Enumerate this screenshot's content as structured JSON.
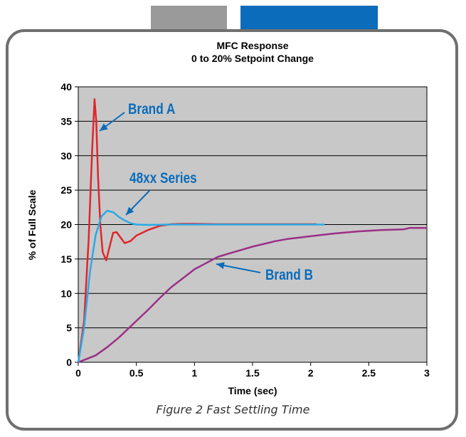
{
  "header_tabs": [
    {
      "color": "#9a9a9a"
    },
    {
      "color": "#0b6cbb"
    }
  ],
  "caption": "Figure 2 Fast Settling Time",
  "chart_data": {
    "type": "line",
    "title": "MFC Response",
    "subtitle": "0 to 20% Setpoint Change",
    "xlabel": "Time (sec)",
    "ylabel": "% of Full Scale",
    "xlim": [
      0,
      3
    ],
    "ylim": [
      0,
      40
    ],
    "x_ticks": [
      "0",
      "0.5",
      "1",
      "1.5",
      "2",
      "2.5",
      "3"
    ],
    "y_ticks": [
      "0",
      "5",
      "10",
      "15",
      "20",
      "25",
      "30",
      "35",
      "40"
    ],
    "grid": "horizontal",
    "plot_background": "#c8c8c8",
    "series": [
      {
        "name": "Brand A",
        "color": "#e0252b",
        "points": [
          [
            0,
            0
          ],
          [
            0.05,
            6
          ],
          [
            0.09,
            18
          ],
          [
            0.12,
            31
          ],
          [
            0.14,
            38.2
          ],
          [
            0.155,
            35
          ],
          [
            0.17,
            27
          ],
          [
            0.19,
            20
          ],
          [
            0.21,
            16
          ],
          [
            0.24,
            14.8
          ],
          [
            0.27,
            16.8
          ],
          [
            0.3,
            18.8
          ],
          [
            0.33,
            18.9
          ],
          [
            0.36,
            18.2
          ],
          [
            0.4,
            17.3
          ],
          [
            0.45,
            17.6
          ],
          [
            0.5,
            18.4
          ],
          [
            0.6,
            19.2
          ],
          [
            0.7,
            19.8
          ],
          [
            0.8,
            20.05
          ],
          [
            0.9,
            20.1
          ],
          [
            1.0,
            20.1
          ],
          [
            1.2,
            20.05
          ],
          [
            1.5,
            20.05
          ],
          [
            1.8,
            20.05
          ],
          [
            2.05,
            20.05
          ]
        ]
      },
      {
        "name": "48xx Series",
        "color": "#2aa9e6",
        "points": [
          [
            0,
            0
          ],
          [
            0.05,
            5
          ],
          [
            0.1,
            13
          ],
          [
            0.15,
            18.5
          ],
          [
            0.2,
            21.2
          ],
          [
            0.25,
            22
          ],
          [
            0.3,
            21.8
          ],
          [
            0.35,
            21.1
          ],
          [
            0.4,
            20.6
          ],
          [
            0.45,
            20.2
          ],
          [
            0.5,
            20
          ],
          [
            0.6,
            19.95
          ],
          [
            0.8,
            20
          ],
          [
            1.0,
            20
          ],
          [
            1.5,
            20
          ],
          [
            2.0,
            20
          ],
          [
            2.12,
            20
          ]
        ]
      },
      {
        "name": "Brand B",
        "color": "#9b2f86",
        "points": [
          [
            0,
            0
          ],
          [
            0.15,
            1
          ],
          [
            0.25,
            2.2
          ],
          [
            0.35,
            3.6
          ],
          [
            0.5,
            6
          ],
          [
            0.6,
            7.6
          ],
          [
            0.7,
            9.3
          ],
          [
            0.8,
            10.9
          ],
          [
            0.9,
            12.2
          ],
          [
            1.0,
            13.5
          ],
          [
            1.1,
            14.4
          ],
          [
            1.2,
            15.3
          ],
          [
            1.3,
            15.8
          ],
          [
            1.4,
            16.3
          ],
          [
            1.5,
            16.8
          ],
          [
            1.6,
            17.2
          ],
          [
            1.7,
            17.6
          ],
          [
            1.8,
            17.9
          ],
          [
            1.9,
            18.1
          ],
          [
            2.0,
            18.3
          ],
          [
            2.1,
            18.5
          ],
          [
            2.2,
            18.7
          ],
          [
            2.4,
            19
          ],
          [
            2.6,
            19.2
          ],
          [
            2.8,
            19.3
          ],
          [
            2.85,
            19.5
          ],
          [
            3.0,
            19.5
          ]
        ]
      }
    ],
    "annotations": [
      {
        "text": "Brand A",
        "color": "#0b6cbb"
      },
      {
        "text": "48xx Series",
        "color": "#0b6cbb"
      },
      {
        "text": "Brand B",
        "color": "#0b6cbb"
      }
    ]
  }
}
